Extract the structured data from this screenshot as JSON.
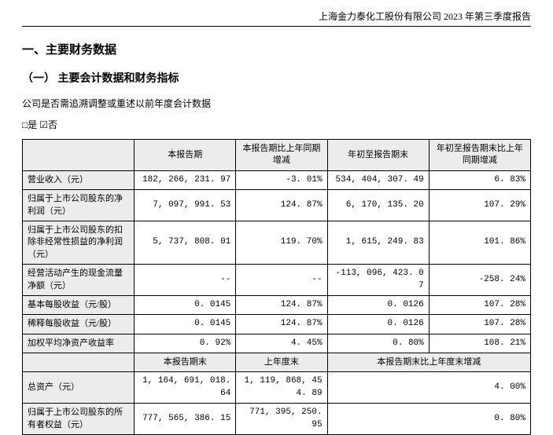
{
  "header": {
    "company_report": "上海金力泰化工股份有限公司 2023 年第三季度报告"
  },
  "titles": {
    "section1": "一、主要财务数据",
    "subsection1": "（一） 主要会计数据和财务指标"
  },
  "hint": "公司是否需追溯调整或重述以前年度会计数据",
  "checks": "□是 ☑否",
  "table": {
    "headers1": {
      "col0": "",
      "col1": "本报告期",
      "col2": "本报告期比上年同期增减",
      "col3": "年初至报告期末",
      "col4": "年初至报告期末比上年同期增减"
    },
    "rows": [
      {
        "label": "营业收入（元）",
        "v1": "182, 266, 231. 97",
        "v2": "-3. 01%",
        "v3": "534, 404, 307. 49",
        "v4": "6. 83%"
      },
      {
        "label": "归属于上市公司股东的净利润（元）",
        "v1": "7, 097, 991. 53",
        "v2": "124. 87%",
        "v3": "6, 170, 135. 20",
        "v4": "107. 29%"
      },
      {
        "label": "归属于上市公司股东的扣除非经常性损益的净利润（元）",
        "v1": "5, 737, 808. 01",
        "v2": "119. 70%",
        "v3": "1, 615, 249. 83",
        "v4": "101. 86%"
      },
      {
        "label": "经营活动产生的现金流量净额（元）",
        "v1": "--",
        "v2": "--",
        "v3": "-113, 096, 423. 07",
        "v4": "-258. 24%"
      },
      {
        "label": "基本每股收益（元/股）",
        "v1": "0. 0145",
        "v2": "124. 87%",
        "v3": "0. 0126",
        "v4": "107. 28%"
      },
      {
        "label": "稀释每股收益（元/股）",
        "v1": "0. 0145",
        "v2": "124. 87%",
        "v3": "0. 0126",
        "v4": "107. 28%"
      },
      {
        "label": "加权平均净资产收益率",
        "v1": "0. 92%",
        "v2": "4. 45%",
        "v3": "0. 80%",
        "v4": "108. 21%"
      }
    ],
    "headers2": {
      "col0": "",
      "col1": "本报告期末",
      "col2": "上年度末",
      "col34": "本报告期末比上年度末增减"
    },
    "rows2": [
      {
        "label": "总资产（元）",
        "v1": "1, 164, 691, 018. 64",
        "v2": "1, 119, 868, 454. 89",
        "v34": "4. 00%"
      },
      {
        "label": "归属于上市公司股东的所有者权益（元）",
        "v1": "777, 565, 386. 15",
        "v2": "771, 395, 250. 95",
        "v34": "0. 80%"
      }
    ]
  }
}
